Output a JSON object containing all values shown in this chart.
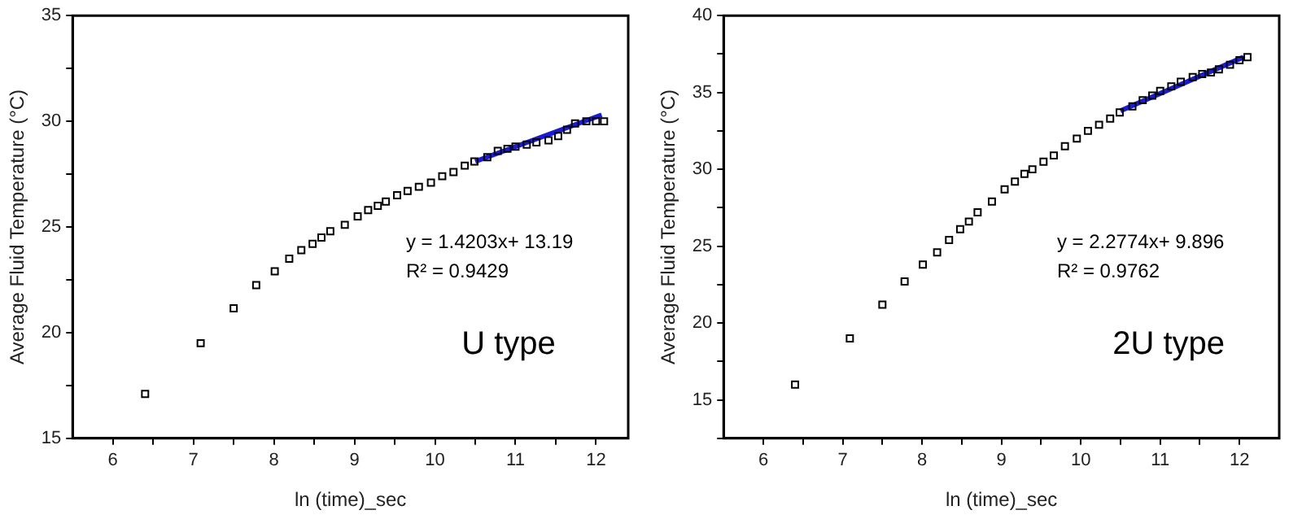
{
  "chart_data": [
    {
      "type": "scatter",
      "xlabel": "ln (time)_sec",
      "ylabel": "Average Fluid Temperature (°C)",
      "xlim": [
        5.5,
        12.4
      ],
      "ylim": [
        15,
        35
      ],
      "xticks": [
        6,
        {
          "value": 6.5,
          "label": null
        },
        7,
        {
          "value": 7.5,
          "label": null
        },
        8,
        {
          "value": 8.5,
          "label": null
        },
        9,
        {
          "value": 9.5,
          "label": null
        },
        10,
        {
          "value": 10.5,
          "label": null
        },
        11,
        {
          "value": 11.5,
          "label": null
        },
        12
      ],
      "yticks": [
        15,
        {
          "value": 17.5,
          "label": null
        },
        20,
        {
          "value": 22.5,
          "label": null
        },
        25,
        {
          "value": 27.5,
          "label": null
        },
        30,
        {
          "value": 32.5,
          "label": null
        },
        35
      ],
      "grid": false,
      "legend": false,
      "series": [
        {
          "color": "#000000",
          "marker": "square",
          "x": [
            6.4,
            7.09,
            7.5,
            7.78,
            8.01,
            8.19,
            8.34,
            8.48,
            8.59,
            8.7,
            8.88,
            9.04,
            9.17,
            9.29,
            9.39,
            9.53,
            9.66,
            9.8,
            9.95,
            10.09,
            10.23,
            10.37,
            10.49,
            10.65,
            10.78,
            10.9,
            11.0,
            11.14,
            11.26,
            11.41,
            11.53,
            11.64,
            11.74,
            11.88,
            12.0,
            12.1
          ],
          "values": [
            17.1,
            19.5,
            21.15,
            22.25,
            22.9,
            23.5,
            23.9,
            24.2,
            24.5,
            24.8,
            25.1,
            25.5,
            25.8,
            26.0,
            26.2,
            26.5,
            26.7,
            26.9,
            27.1,
            27.4,
            27.6,
            27.9,
            28.1,
            28.3,
            28.6,
            28.7,
            28.8,
            28.9,
            29.0,
            29.1,
            29.3,
            29.6,
            29.9,
            30.0,
            30.0,
            30.0
          ]
        },
        {
          "type": "line",
          "marker": "none",
          "color": "#1a1adb",
          "x": [
            10.5,
            12.07
          ],
          "values": [
            28.1,
            30.3
          ]
        }
      ],
      "annotations": [
        "y = 1.4203x+ 13.19",
        "R² = 0.9429",
        "U type"
      ]
    },
    {
      "type": "scatter",
      "xlabel": "ln (time)_sec",
      "ylabel": "Average Fluid Temperature (°C)",
      "xlim": [
        5.5,
        12.5
      ],
      "ylim": [
        12.5,
        40
      ],
      "xticks": [
        6,
        {
          "value": 6.5,
          "label": null
        },
        7,
        {
          "value": 7.5,
          "label": null
        },
        8,
        {
          "value": 8.5,
          "label": null
        },
        9,
        {
          "value": 9.5,
          "label": null
        },
        10,
        {
          "value": 10.5,
          "label": null
        },
        11,
        {
          "value": 11.5,
          "label": null
        },
        12
      ],
      "yticks": [
        {
          "value": 12.5,
          "label": null
        },
        15,
        {
          "value": 17.5,
          "label": null
        },
        20,
        {
          "value": 22.5,
          "label": null
        },
        25,
        {
          "value": 27.5,
          "label": null
        },
        30,
        {
          "value": 32.5,
          "label": null
        },
        35,
        {
          "value": 37.5,
          "label": null
        },
        40
      ],
      "grid": false,
      "legend": false,
      "series": [
        {
          "color": "#000000",
          "marker": "square",
          "x": [
            6.4,
            7.09,
            7.5,
            7.78,
            8.01,
            8.19,
            8.34,
            8.48,
            8.59,
            8.7,
            8.88,
            9.04,
            9.17,
            9.29,
            9.39,
            9.53,
            9.66,
            9.8,
            9.95,
            10.09,
            10.23,
            10.37,
            10.49,
            10.65,
            10.78,
            10.9,
            11.0,
            11.14,
            11.26,
            11.41,
            11.53,
            11.64,
            11.74,
            11.88,
            12.0,
            12.1
          ],
          "values": [
            16.0,
            19.0,
            21.2,
            22.7,
            23.8,
            24.6,
            25.4,
            26.1,
            26.6,
            27.2,
            27.9,
            28.7,
            29.2,
            29.7,
            30.0,
            30.5,
            30.9,
            31.5,
            32.0,
            32.5,
            32.9,
            33.3,
            33.7,
            34.1,
            34.5,
            34.8,
            35.1,
            35.4,
            35.7,
            36.0,
            36.2,
            36.3,
            36.5,
            36.8,
            37.1,
            37.3
          ]
        },
        {
          "type": "line",
          "marker": "none",
          "color": "#1a1adb",
          "x": [
            10.5,
            12.05
          ],
          "values": [
            33.8,
            37.3
          ]
        }
      ],
      "annotations": [
        "y = 2.2774x+ 9.896",
        "R² = 0.9762",
        "2U type"
      ]
    }
  ]
}
